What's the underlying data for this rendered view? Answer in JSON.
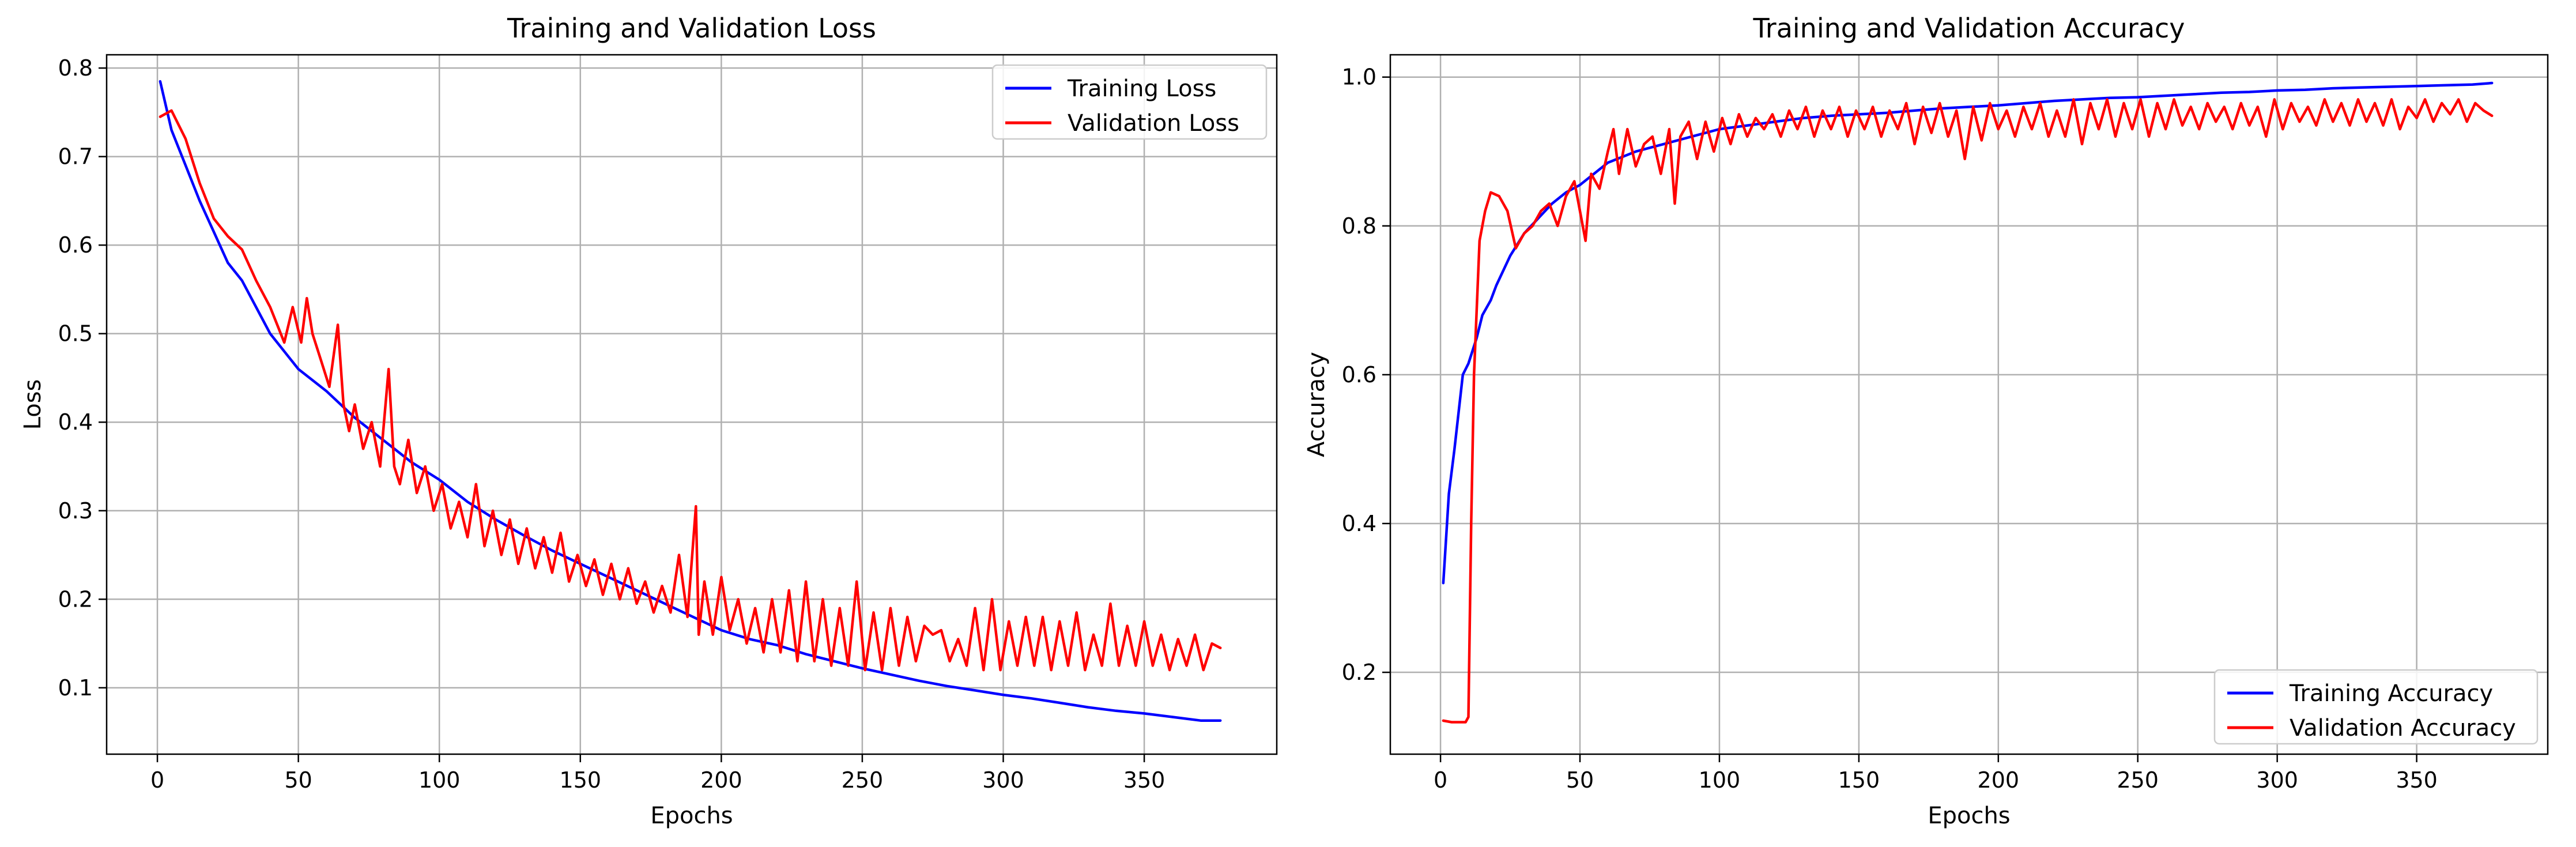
{
  "chart_data": [
    {
      "type": "line",
      "title": "Training and Validation Loss",
      "xlabel": "Epochs",
      "ylabel": "Loss",
      "xlim": [
        -18,
        397
      ],
      "ylim": [
        0.025,
        0.815
      ],
      "xticks": [
        0,
        50,
        100,
        150,
        200,
        250,
        300,
        350
      ],
      "yticks": [
        0.1,
        0.2,
        0.3,
        0.4,
        0.5,
        0.6,
        0.7,
        0.8
      ],
      "ytick_labels": [
        "0.1",
        "0.2",
        "0.3",
        "0.4",
        "0.5",
        "0.6",
        "0.7",
        "0.8"
      ],
      "grid": true,
      "legend": "upper right",
      "series": [
        {
          "name": "Training Loss",
          "color": "#0000ff",
          "x": [
            1,
            5,
            10,
            15,
            20,
            25,
            30,
            40,
            50,
            60,
            70,
            80,
            90,
            100,
            110,
            120,
            130,
            140,
            150,
            160,
            170,
            180,
            190,
            200,
            210,
            220,
            230,
            240,
            250,
            260,
            270,
            280,
            290,
            300,
            310,
            320,
            330,
            340,
            350,
            360,
            370,
            377
          ],
          "y": [
            0.785,
            0.73,
            0.69,
            0.65,
            0.615,
            0.58,
            0.56,
            0.5,
            0.46,
            0.435,
            0.405,
            0.38,
            0.355,
            0.335,
            0.31,
            0.29,
            0.272,
            0.255,
            0.24,
            0.225,
            0.21,
            0.195,
            0.18,
            0.165,
            0.155,
            0.148,
            0.138,
            0.13,
            0.122,
            0.115,
            0.108,
            0.102,
            0.097,
            0.092,
            0.088,
            0.083,
            0.078,
            0.074,
            0.071,
            0.067,
            0.063,
            0.063
          ]
        },
        {
          "name": "Validation Loss",
          "color": "#ff0000",
          "x": [
            1,
            5,
            10,
            15,
            20,
            25,
            30,
            35,
            40,
            45,
            48,
            51,
            53,
            55,
            58,
            61,
            64,
            66,
            68,
            70,
            73,
            76,
            79,
            82,
            84,
            86,
            89,
            92,
            95,
            98,
            101,
            104,
            107,
            110,
            113,
            116,
            119,
            122,
            125,
            128,
            131,
            134,
            137,
            140,
            143,
            146,
            149,
            152,
            155,
            158,
            161,
            164,
            167,
            170,
            173,
            176,
            179,
            182,
            185,
            188,
            191,
            192,
            194,
            197,
            200,
            203,
            206,
            209,
            212,
            215,
            218,
            221,
            224,
            227,
            230,
            233,
            236,
            239,
            242,
            245,
            248,
            251,
            254,
            257,
            260,
            263,
            266,
            269,
            272,
            275,
            278,
            281,
            284,
            287,
            290,
            293,
            296,
            299,
            302,
            305,
            308,
            311,
            314,
            317,
            320,
            323,
            326,
            329,
            332,
            335,
            338,
            341,
            344,
            347,
            350,
            353,
            356,
            359,
            362,
            365,
            368,
            371,
            374,
            377
          ],
          "y": [
            0.745,
            0.752,
            0.72,
            0.67,
            0.63,
            0.61,
            0.595,
            0.56,
            0.53,
            0.49,
            0.53,
            0.49,
            0.54,
            0.5,
            0.47,
            0.44,
            0.51,
            0.42,
            0.39,
            0.42,
            0.37,
            0.4,
            0.35,
            0.46,
            0.35,
            0.33,
            0.38,
            0.32,
            0.35,
            0.3,
            0.33,
            0.28,
            0.31,
            0.27,
            0.33,
            0.26,
            0.3,
            0.25,
            0.29,
            0.24,
            0.28,
            0.235,
            0.27,
            0.23,
            0.275,
            0.22,
            0.25,
            0.215,
            0.245,
            0.205,
            0.24,
            0.2,
            0.235,
            0.195,
            0.22,
            0.185,
            0.215,
            0.185,
            0.25,
            0.18,
            0.305,
            0.16,
            0.22,
            0.16,
            0.225,
            0.165,
            0.2,
            0.15,
            0.19,
            0.14,
            0.2,
            0.14,
            0.21,
            0.13,
            0.22,
            0.13,
            0.2,
            0.125,
            0.19,
            0.125,
            0.22,
            0.12,
            0.185,
            0.12,
            0.19,
            0.125,
            0.18,
            0.13,
            0.17,
            0.16,
            0.165,
            0.13,
            0.155,
            0.125,
            0.19,
            0.12,
            0.2,
            0.12,
            0.175,
            0.125,
            0.18,
            0.125,
            0.18,
            0.12,
            0.175,
            0.125,
            0.185,
            0.12,
            0.16,
            0.125,
            0.195,
            0.125,
            0.17,
            0.125,
            0.175,
            0.125,
            0.16,
            0.12,
            0.155,
            0.125,
            0.16,
            0.12,
            0.15,
            0.145
          ]
        }
      ]
    },
    {
      "type": "line",
      "title": "Training and Validation Accuracy",
      "xlabel": "Epochs",
      "ylabel": "Accuracy",
      "xlim": [
        -18,
        397
      ],
      "ylim": [
        0.09,
        1.03
      ],
      "xticks": [
        0,
        50,
        100,
        150,
        200,
        250,
        300,
        350
      ],
      "yticks": [
        0.2,
        0.4,
        0.6,
        0.8,
        1.0
      ],
      "ytick_labels": [
        "0.2",
        "0.4",
        "0.6",
        "0.8",
        "1.0"
      ],
      "grid": true,
      "legend": "lower right",
      "series": [
        {
          "name": "Training Accuracy",
          "color": "#0000ff",
          "x": [
            1,
            3,
            5,
            8,
            10,
            13,
            15,
            18,
            20,
            25,
            30,
            35,
            40,
            45,
            50,
            55,
            60,
            70,
            80,
            90,
            100,
            110,
            120,
            130,
            140,
            150,
            160,
            170,
            180,
            190,
            200,
            210,
            220,
            230,
            240,
            250,
            260,
            270,
            280,
            290,
            300,
            310,
            320,
            330,
            340,
            350,
            360,
            370,
            377
          ],
          "y": [
            0.32,
            0.44,
            0.5,
            0.6,
            0.615,
            0.65,
            0.68,
            0.7,
            0.72,
            0.76,
            0.79,
            0.81,
            0.83,
            0.845,
            0.855,
            0.87,
            0.885,
            0.9,
            0.91,
            0.92,
            0.93,
            0.935,
            0.94,
            0.945,
            0.948,
            0.95,
            0.952,
            0.955,
            0.958,
            0.96,
            0.962,
            0.965,
            0.968,
            0.97,
            0.972,
            0.973,
            0.975,
            0.977,
            0.979,
            0.98,
            0.982,
            0.983,
            0.985,
            0.986,
            0.987,
            0.988,
            0.989,
            0.99,
            0.992
          ]
        },
        {
          "name": "Validation Accuracy",
          "color": "#ff0000",
          "x": [
            1,
            4,
            7,
            9,
            10,
            11,
            12,
            14,
            16,
            18,
            21,
            24,
            27,
            30,
            33,
            36,
            39,
            42,
            45,
            48,
            50,
            52,
            54,
            57,
            60,
            62,
            64,
            67,
            70,
            73,
            76,
            79,
            82,
            84,
            86,
            89,
            92,
            95,
            98,
            101,
            104,
            107,
            110,
            113,
            116,
            119,
            122,
            125,
            128,
            131,
            134,
            137,
            140,
            143,
            146,
            149,
            152,
            155,
            158,
            161,
            164,
            167,
            170,
            173,
            176,
            179,
            182,
            185,
            188,
            191,
            194,
            197,
            200,
            203,
            206,
            209,
            212,
            215,
            218,
            221,
            224,
            227,
            230,
            233,
            236,
            239,
            242,
            245,
            248,
            251,
            254,
            257,
            260,
            263,
            266,
            269,
            272,
            275,
            278,
            281,
            284,
            287,
            290,
            293,
            296,
            299,
            302,
            305,
            308,
            311,
            314,
            317,
            320,
            323,
            326,
            329,
            332,
            335,
            338,
            341,
            344,
            347,
            350,
            353,
            356,
            359,
            362,
            365,
            368,
            371,
            374,
            377
          ],
          "y": [
            0.135,
            0.133,
            0.133,
            0.133,
            0.14,
            0.4,
            0.6,
            0.78,
            0.82,
            0.845,
            0.84,
            0.82,
            0.77,
            0.79,
            0.8,
            0.82,
            0.83,
            0.8,
            0.84,
            0.86,
            0.82,
            0.78,
            0.87,
            0.85,
            0.9,
            0.93,
            0.87,
            0.93,
            0.88,
            0.91,
            0.92,
            0.87,
            0.93,
            0.83,
            0.92,
            0.94,
            0.89,
            0.94,
            0.9,
            0.945,
            0.91,
            0.95,
            0.92,
            0.945,
            0.93,
            0.95,
            0.92,
            0.955,
            0.93,
            0.96,
            0.92,
            0.955,
            0.93,
            0.96,
            0.92,
            0.955,
            0.93,
            0.96,
            0.92,
            0.955,
            0.93,
            0.965,
            0.91,
            0.96,
            0.925,
            0.965,
            0.92,
            0.955,
            0.89,
            0.96,
            0.915,
            0.965,
            0.93,
            0.955,
            0.92,
            0.96,
            0.93,
            0.965,
            0.92,
            0.955,
            0.92,
            0.97,
            0.91,
            0.965,
            0.93,
            0.97,
            0.92,
            0.965,
            0.93,
            0.97,
            0.92,
            0.965,
            0.93,
            0.97,
            0.935,
            0.96,
            0.93,
            0.965,
            0.94,
            0.96,
            0.93,
            0.965,
            0.935,
            0.96,
            0.92,
            0.97,
            0.93,
            0.965,
            0.94,
            0.96,
            0.935,
            0.97,
            0.94,
            0.965,
            0.935,
            0.97,
            0.94,
            0.965,
            0.935,
            0.97,
            0.93,
            0.96,
            0.945,
            0.97,
            0.94,
            0.965,
            0.95,
            0.97,
            0.94,
            0.965,
            0.955,
            0.948
          ]
        }
      ]
    }
  ]
}
